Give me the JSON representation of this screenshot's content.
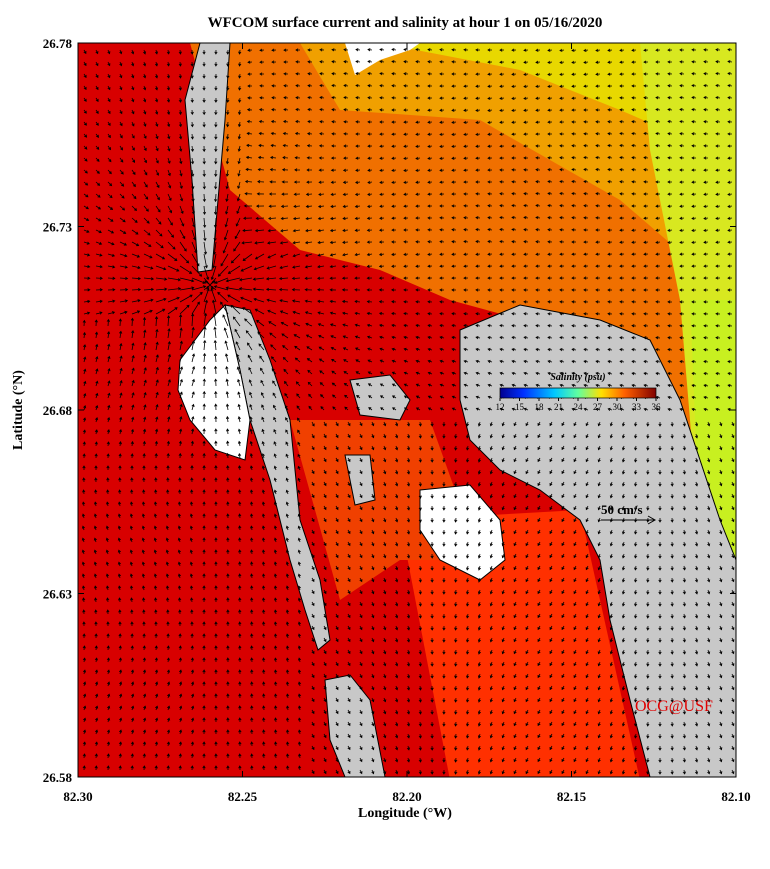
{
  "map": {
    "title": "WFCOM surface current and salinity at hour 1 on 05/16/2020",
    "xlabel": "Longitude (°W)",
    "ylabel": "Latitude (°N)",
    "xlim": [
      82.3,
      82.1
    ],
    "ylim": [
      26.58,
      26.78
    ],
    "xticks": [
      {
        "value": 82.3,
        "label": "82.30"
      },
      82.25,
      {
        "value": 82.2,
        "label": "82.20"
      },
      82.15,
      {
        "value": 82.1,
        "label": "82.10"
      }
    ],
    "yticks": [
      26.58,
      26.63,
      26.68,
      26.73,
      26.78
    ],
    "colorbar": {
      "title": "Salinity (psu)",
      "lim": [
        12,
        36
      ],
      "ticks": [
        12,
        15,
        18,
        21,
        24,
        27,
        30,
        33,
        36
      ]
    },
    "scale_label": "50 cm/s",
    "credit": "OCG@USF"
  }
}
